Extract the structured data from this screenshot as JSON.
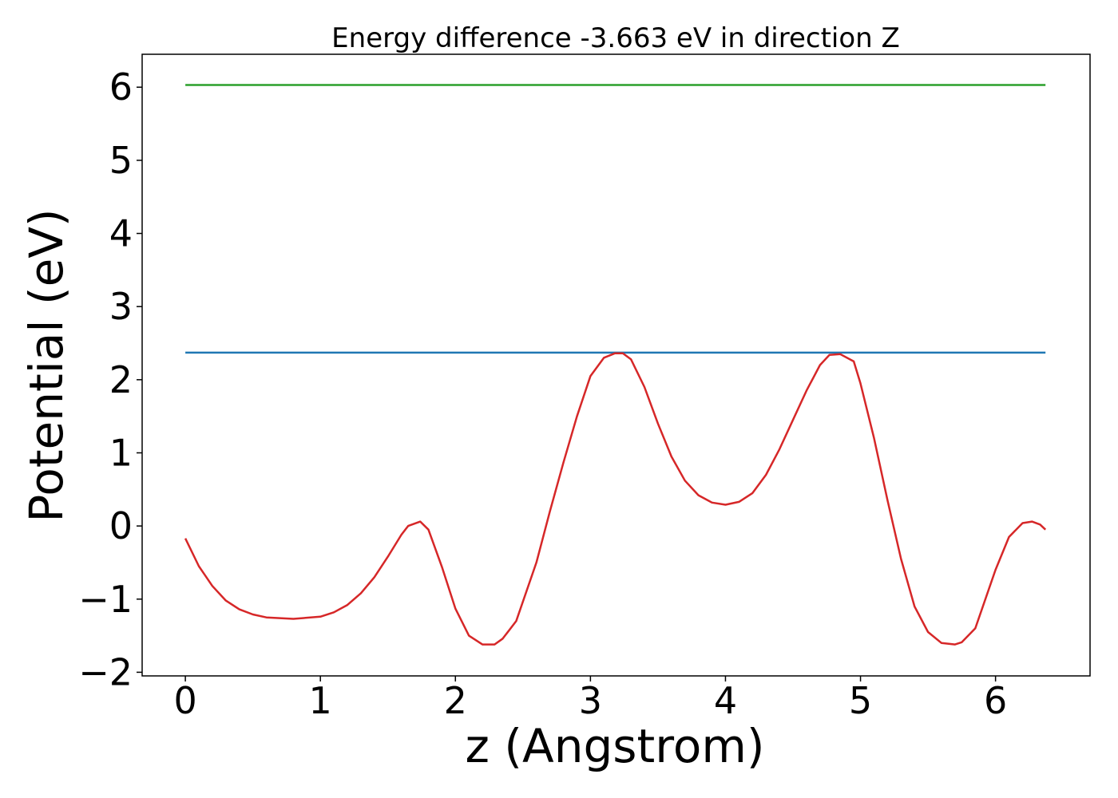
{
  "chart_data": {
    "type": "line",
    "title": "Energy difference -3.663 eV in direction Z",
    "xlabel": "z (Angstrom)",
    "ylabel": "Potential (eV)",
    "xlim": [
      -0.32,
      6.7
    ],
    "ylim": [
      -2.05,
      6.45
    ],
    "xticks": [
      0,
      1,
      2,
      3,
      4,
      5,
      6
    ],
    "xtick_labels": [
      "0",
      "1",
      "2",
      "3",
      "4",
      "5",
      "6"
    ],
    "yticks": [
      -2,
      -1,
      0,
      1,
      2,
      3,
      4,
      5,
      6
    ],
    "ytick_labels": [
      "−2",
      "−1",
      "0",
      "1",
      "2",
      "3",
      "4",
      "5",
      "6"
    ],
    "grid": false,
    "legend": "none",
    "series": [
      {
        "color": "#2ca02c",
        "x": [
          0,
          6.37
        ],
        "y": [
          6.03,
          6.03
        ]
      },
      {
        "color": "#1f77b4",
        "x": [
          0,
          6.37
        ],
        "y": [
          2.37,
          2.37
        ]
      },
      {
        "color": "#d62728",
        "x": [
          0.0,
          0.1,
          0.2,
          0.3,
          0.4,
          0.5,
          0.6,
          0.8,
          1.0,
          1.1,
          1.2,
          1.3,
          1.4,
          1.5,
          1.6,
          1.65,
          1.74,
          1.8,
          1.9,
          2.0,
          2.1,
          2.2,
          2.29,
          2.35,
          2.45,
          2.6,
          2.7,
          2.8,
          2.9,
          3.0,
          3.1,
          3.18,
          3.24,
          3.3,
          3.4,
          3.5,
          3.6,
          3.7,
          3.8,
          3.9,
          4.0,
          4.1,
          4.2,
          4.3,
          4.4,
          4.5,
          4.6,
          4.7,
          4.77,
          4.85,
          4.95,
          5.0,
          5.1,
          5.2,
          5.3,
          5.4,
          5.5,
          5.6,
          5.7,
          5.75,
          5.85,
          6.0,
          6.1,
          6.2,
          6.27,
          6.33,
          6.37
        ],
        "y": [
          -0.17,
          -0.55,
          -0.82,
          -1.02,
          -1.14,
          -1.21,
          -1.25,
          -1.27,
          -1.24,
          -1.18,
          -1.08,
          -0.92,
          -0.7,
          -0.42,
          -0.12,
          0.0,
          0.06,
          -0.05,
          -0.56,
          -1.13,
          -1.5,
          -1.62,
          -1.62,
          -1.54,
          -1.3,
          -0.5,
          0.2,
          0.87,
          1.5,
          2.05,
          2.3,
          2.36,
          2.36,
          2.28,
          1.9,
          1.4,
          0.95,
          0.62,
          0.42,
          0.32,
          0.29,
          0.33,
          0.45,
          0.7,
          1.05,
          1.45,
          1.85,
          2.2,
          2.34,
          2.35,
          2.25,
          1.95,
          1.2,
          0.35,
          -0.45,
          -1.1,
          -1.45,
          -1.6,
          -1.62,
          -1.59,
          -1.4,
          -0.6,
          -0.15,
          0.04,
          0.06,
          0.02,
          -0.05
        ]
      }
    ]
  }
}
